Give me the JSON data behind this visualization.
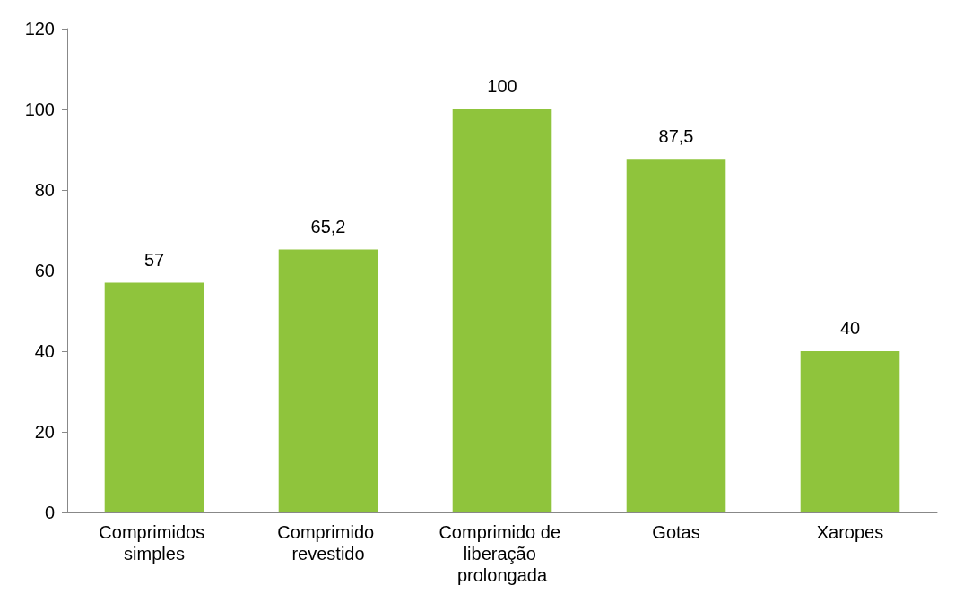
{
  "chart_data": {
    "type": "bar",
    "categories": [
      "Comprimidos simples",
      "Comprimido revestido",
      "Comprimido de liberação prolongada",
      "Gotas",
      "Xaropes"
    ],
    "values": [
      57,
      65.2,
      100,
      87.5,
      40
    ],
    "value_labels": [
      "57",
      "65,2",
      "100",
      "87,5",
      "40"
    ],
    "color": "#8fc43c",
    "ylim": [
      0,
      120
    ],
    "yticks": [
      0,
      20,
      40,
      60,
      80,
      100,
      120
    ],
    "grid": false
  }
}
